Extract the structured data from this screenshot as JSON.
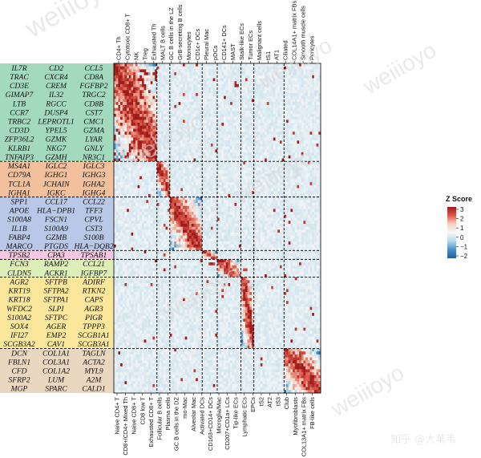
{
  "chart_data": {
    "type": "heatmap",
    "colorbar": {
      "title": "Z Score",
      "ticks": [
        "3",
        "2",
        "1",
        "0",
        "−1",
        "−2"
      ],
      "stops": [
        "#9e1b1b",
        "#dd5a4a",
        "#f6d3c4",
        "#f7f7f7",
        "#b8d8ea",
        "#4a8fc2",
        "#1f5f99"
      ]
    },
    "top_labels": [
      "CD4+ Th",
      "Cytotoxic CD8+ T",
      "NK",
      "Treg",
      "Exhausted Th",
      "MALT B cells",
      "GC B cells in the LZ",
      "GrB-secreting B cells",
      "Monocytes",
      "CD1c+ DCs",
      "Pleural Mac",
      "pDCs",
      "CD141+ DCs",
      "MAST",
      "Stalk-like ECs",
      "Tumor ECs",
      "Malignant cells",
      "tS1",
      "AT1",
      "Ciliated",
      "COL14A1+ matrix FBs",
      "Smooth muscle cells",
      "Pericytes"
    ],
    "bottom_labels": [
      "Naive CD4+ T",
      "CD8+/CD4+ Mixed Th",
      "Naive CD8+ T",
      "CD8 low T",
      "Exhausted CD8+ T",
      "Follicular B cells",
      "Plasma cells",
      "GC B cells in the DZ",
      "mo-Mac",
      "Alveolar Mac",
      "Activated DCs",
      "CD163+CD14+ DCs",
      "Microglia/Mac",
      "CD207+CD1a+ LCs",
      "Tip-like ECs",
      "Lymphatic ECs",
      "EPCs",
      "tS2",
      "AT2",
      "tS3",
      "Club",
      "Myofibroblasts",
      "COL13A1+ matrix FBs",
      "FB-like cells"
    ],
    "column_groups": [
      9,
      3,
      7,
      3,
      5,
      3,
      6,
      8
    ],
    "gene_groups": [
      {
        "color": "#a3d9bd",
        "genes": [
          [
            "IL7R",
            "CD2",
            "CCL5"
          ],
          [
            "TRAC",
            "CXCR4",
            "CD8A"
          ],
          [
            "CD3E",
            "CREM",
            "FGFBP2"
          ],
          [
            "GIMAP7",
            "IL32",
            "TRGC2"
          ],
          [
            "LTB",
            "RGCC",
            "CD8B"
          ],
          [
            "CCR7",
            "DUSP4",
            "CST7"
          ],
          [
            "TRBC2",
            "LEPROTL1",
            "CMC1"
          ],
          [
            "CD3D",
            "YPEL5",
            "GZMA"
          ],
          [
            "ZFP36L2",
            "GZMK",
            "LYAR"
          ],
          [
            "KLRB1",
            "NKG7",
            "GNLY"
          ],
          [
            "TNFAIP3",
            "GZMH",
            "NR3C1"
          ]
        ]
      },
      {
        "color": "#f2c09c",
        "genes": [
          [
            "MS4A1",
            "IGLC2",
            "IGLC3"
          ],
          [
            "CD79A",
            "IGHG1",
            "IGHG3"
          ],
          [
            "TCL1A",
            "JCHAIN",
            "IGHA2"
          ],
          [
            "IGHA1",
            "IGKC",
            "IGHG4"
          ]
        ]
      },
      {
        "color": "#b9c8e6",
        "genes": [
          [
            "SPP1",
            "CCL17",
            "CCL22"
          ],
          [
            "APOE",
            "HLA−DPB1",
            "TFF3"
          ],
          [
            "S100A8",
            "FSCN1",
            "CPVL"
          ],
          [
            "IL1B",
            "S100A9",
            "CST3"
          ],
          [
            "FABP4",
            "GZMB",
            "S100B"
          ],
          [
            "MARCO",
            "PTGDS",
            "HLA−DQB2"
          ]
        ]
      },
      {
        "color": "#f6c8e2",
        "genes": [
          [
            "TPSB2",
            "CPA3",
            "TPSAB1"
          ]
        ]
      },
      {
        "color": "#dcefb8",
        "genes": [
          [
            "FCN3",
            "RAMP2",
            "CCL21"
          ],
          [
            "CLDN5",
            "ACKR1",
            "IGFBP7"
          ]
        ]
      },
      {
        "color": "#fbe79c",
        "genes": [
          [
            "AGR2",
            "SFTPB",
            "ADIRF"
          ],
          [
            "KRT19",
            "SFTPA2",
            "RTKN2"
          ],
          [
            "KRT18",
            "SFTPA1",
            "CAPS"
          ],
          [
            "WFDC2",
            "SLPI",
            "AGR3"
          ],
          [
            "S100A2",
            "SFTPC",
            "PIGR"
          ],
          [
            "SOX4",
            "AGER",
            "TPPP3"
          ],
          [
            "IFI27",
            "EMP2",
            "SCGB1A1"
          ],
          [
            "SCGB3A2",
            "CAV1",
            "SCGB3A1"
          ]
        ]
      },
      {
        "color": "#ead7c0",
        "genes": [
          [
            "DCN",
            "COL1A1",
            "TAGLN"
          ],
          [
            "FBLN1",
            "COL3A1",
            "ACTA2"
          ],
          [
            "CFD",
            "COL1A2",
            "MYL9"
          ],
          [
            "SFRP2",
            "LUM",
            "A2M"
          ],
          [
            "MGP",
            "SPARC",
            "CALD1"
          ]
        ]
      }
    ]
  },
  "watermarks": [
    "weiiioyo",
    "weiiioyo",
    "weiiioyo",
    "weiiioyo",
    "weiiioyo",
    "weiiioyo",
    "weiiioyo"
  ],
  "brand": "知乎 @大苇韦"
}
